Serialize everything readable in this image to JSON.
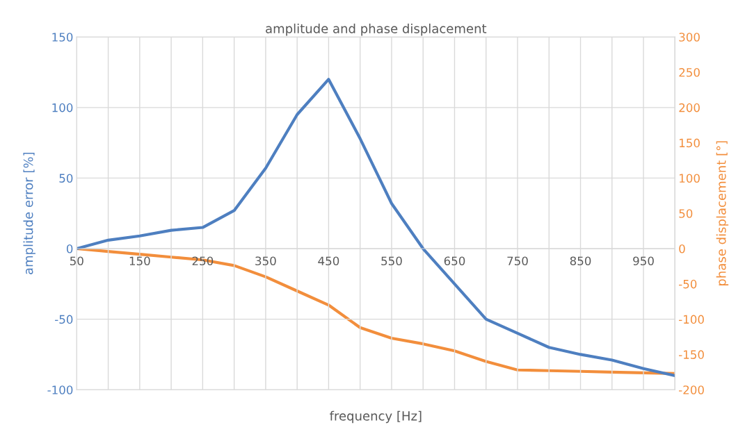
{
  "chart_data": {
    "type": "line",
    "title": "amplitude and phase displacement",
    "xlabel": "frequency [Hz]",
    "ylabel": "amplitude error [%]",
    "y2label": "phase displacement [°]",
    "x": [
      50,
      100,
      150,
      200,
      250,
      300,
      350,
      400,
      450,
      500,
      550,
      600,
      650,
      700,
      750,
      800,
      850,
      900,
      950,
      1000
    ],
    "series": [
      {
        "color": "#4e7fc0",
        "values": [
          0,
          6,
          9,
          13,
          15,
          27,
          57,
          95,
          120,
          78,
          32,
          0,
          -25,
          -50,
          -60,
          -70,
          -75,
          -79,
          -85,
          -90
        ]
      },
      {
        "color": "#f28e3c",
        "axis": "y2",
        "values": [
          0,
          -4,
          -8,
          -12,
          -16,
          -24,
          -40,
          -60,
          -80,
          -112,
          -127,
          -135,
          -145,
          -160,
          -172,
          -173,
          -174,
          -175,
          -176,
          -177
        ]
      }
    ],
    "xlim": [
      50,
      1000
    ],
    "xticks": [
      50,
      {
        "value": 100,
        "label": null
      },
      150,
      {
        "value": 200,
        "label": null
      },
      250,
      {
        "value": 300,
        "label": null
      },
      350,
      {
        "value": 400,
        "label": null
      },
      450,
      {
        "value": 500,
        "label": null
      },
      550,
      {
        "value": 600,
        "label": null
      },
      650,
      {
        "value": 700,
        "label": null
      },
      750,
      {
        "value": 800,
        "label": null
      },
      850,
      {
        "value": 900,
        "label": null
      },
      950,
      {
        "value": 1000,
        "label": null
      }
    ],
    "ylim": [
      -100,
      150
    ],
    "yticks": [
      -100,
      -50,
      0,
      50,
      100,
      150
    ],
    "y2lim": [
      -200,
      300
    ],
    "y2ticks": [
      -200,
      -150,
      -100,
      -50,
      0,
      50,
      100,
      150,
      200,
      250,
      300
    ],
    "grid": true,
    "marker": "none",
    "line_style": "solid"
  }
}
